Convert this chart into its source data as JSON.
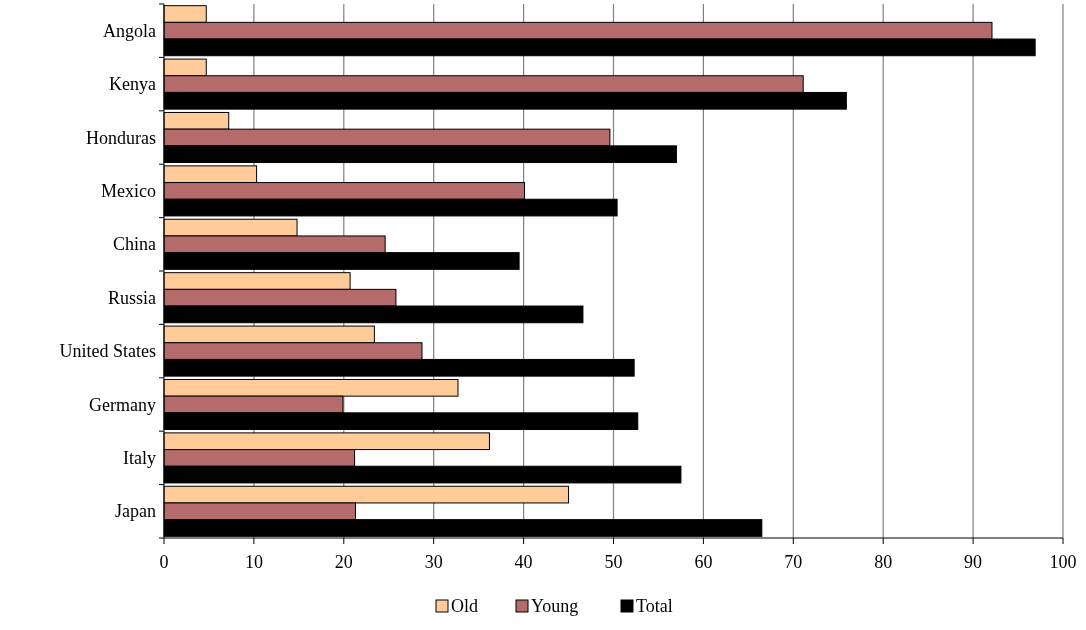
{
  "chart_data": {
    "type": "bar",
    "orientation": "horizontal",
    "categories": [
      "Angola",
      "Kenya",
      "Honduras",
      "Mexico",
      "China",
      "Russia",
      "United States",
      "Germany",
      "Italy",
      "Japan"
    ],
    "series": [
      {
        "name": "Old",
        "color": "#ffcc99",
        "values": [
          4.7,
          4.7,
          7.2,
          10.3,
          14.8,
          20.7,
          23.4,
          32.7,
          36.2,
          45.0
        ]
      },
      {
        "name": "Young",
        "color": "#b56b6b",
        "values": [
          92.1,
          71.1,
          49.6,
          40.1,
          24.6,
          25.8,
          28.7,
          19.9,
          21.2,
          21.3
        ]
      },
      {
        "name": "Total",
        "color": "#000000",
        "values": [
          96.9,
          75.9,
          57.0,
          50.4,
          39.5,
          46.6,
          52.3,
          52.7,
          57.5,
          66.5
        ]
      }
    ],
    "xlim": [
      0,
      100
    ],
    "xticks": [
      0,
      10,
      20,
      30,
      40,
      50,
      60,
      70,
      80,
      90,
      100
    ],
    "grid": "x",
    "legend": "bottom"
  }
}
